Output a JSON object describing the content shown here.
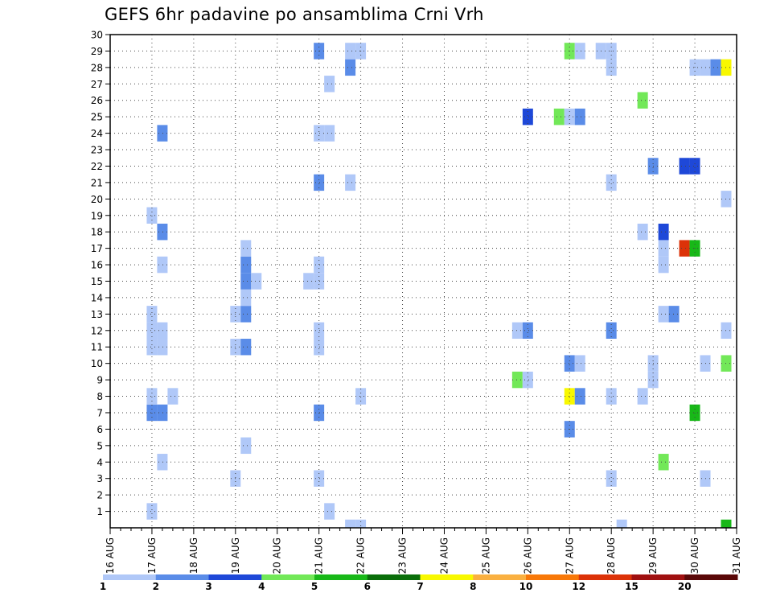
{
  "chart_data": {
    "type": "heatmap",
    "title": "GEFS 6hr padavine po ansamblima Crni Vrh",
    "xlabel": "",
    "ylabel": "",
    "x_tick_labels": [
      "16 AUG",
      "17 AUG",
      "18 AUG",
      "19 AUG",
      "20 AUG",
      "21 AUG",
      "22 AUG",
      "23 AUG",
      "24 AUG",
      "25 AUG",
      "26 AUG",
      "27 AUG",
      "28 AUG",
      "29 AUG",
      "30 AUG",
      "31 AUG"
    ],
    "y_tick_labels": [
      "1",
      "2",
      "3",
      "4",
      "5",
      "6",
      "7",
      "8",
      "9",
      "10",
      "11",
      "12",
      "13",
      "14",
      "15",
      "16",
      "17",
      "18",
      "19",
      "20",
      "21",
      "22",
      "23",
      "24",
      "25",
      "26",
      "27",
      "28",
      "29",
      "30"
    ],
    "x_range_days": [
      16,
      31
    ],
    "y_range": [
      0,
      30
    ],
    "time_step_hours": 6,
    "grid": true,
    "colorbar": {
      "placement": "bottom",
      "labels": [
        "1",
        "2",
        "3",
        "4",
        "5",
        "6",
        "7",
        "8",
        "10",
        "12",
        "15",
        "20"
      ],
      "colors": [
        "#b0c8f8",
        "#5a8ce8",
        "#1e48d8",
        "#72e858",
        "#18b818",
        "#0a6e0a",
        "#f8f800",
        "#fab040",
        "#f87808",
        "#dc3208",
        "#a01010",
        "#5a0808"
      ]
    },
    "cells": [
      {
        "t": 17.0,
        "m": 1,
        "l": 1
      },
      {
        "t": 17.25,
        "m": 4,
        "l": 1
      },
      {
        "t": 17.0,
        "m": 7,
        "l": 2
      },
      {
        "t": 17.25,
        "m": 7,
        "l": 2
      },
      {
        "t": 17.0,
        "m": 8,
        "l": 1
      },
      {
        "t": 17.5,
        "m": 8,
        "l": 1
      },
      {
        "t": 17.0,
        "m": 11,
        "l": 1
      },
      {
        "t": 17.25,
        "m": 11,
        "l": 1
      },
      {
        "t": 17.0,
        "m": 12,
        "l": 1
      },
      {
        "t": 17.25,
        "m": 12,
        "l": 1
      },
      {
        "t": 17.0,
        "m": 13,
        "l": 1
      },
      {
        "t": 17.25,
        "m": 16,
        "l": 1
      },
      {
        "t": 17.25,
        "m": 18,
        "l": 2
      },
      {
        "t": 17.0,
        "m": 19,
        "l": 1
      },
      {
        "t": 17.25,
        "m": 24,
        "l": 2
      },
      {
        "t": 19.0,
        "m": 3,
        "l": 1
      },
      {
        "t": 19.25,
        "m": 5,
        "l": 1
      },
      {
        "t": 19.0,
        "m": 11,
        "l": 1
      },
      {
        "t": 19.25,
        "m": 11,
        "l": 2
      },
      {
        "t": 19.0,
        "m": 13,
        "l": 1
      },
      {
        "t": 19.25,
        "m": 13,
        "l": 2
      },
      {
        "t": 19.25,
        "m": 14,
        "l": 1
      },
      {
        "t": 19.25,
        "m": 15,
        "l": 2
      },
      {
        "t": 19.25,
        "m": 16,
        "l": 2
      },
      {
        "t": 19.5,
        "m": 15,
        "l": 1
      },
      {
        "t": 19.25,
        "m": 17,
        "l": 1
      },
      {
        "t": 20.75,
        "m": 15,
        "l": 1
      },
      {
        "t": 21.0,
        "m": 3,
        "l": 1
      },
      {
        "t": 21.0,
        "m": 7,
        "l": 2
      },
      {
        "t": 21.0,
        "m": 11,
        "l": 1
      },
      {
        "t": 21.0,
        "m": 12,
        "l": 1
      },
      {
        "t": 21.0,
        "m": 15,
        "l": 1
      },
      {
        "t": 21.0,
        "m": 16,
        "l": 1
      },
      {
        "t": 21.0,
        "m": 21,
        "l": 2
      },
      {
        "t": 21.0,
        "m": 24,
        "l": 1
      },
      {
        "t": 21.25,
        "m": 24,
        "l": 1
      },
      {
        "t": 21.0,
        "m": 29,
        "l": 2
      },
      {
        "t": 21.25,
        "m": 1,
        "l": 1
      },
      {
        "t": 21.25,
        "m": 27,
        "l": 1
      },
      {
        "t": 21.75,
        "m": 0,
        "l": 1
      },
      {
        "t": 22.0,
        "m": 0,
        "l": 1
      },
      {
        "t": 21.75,
        "m": 21,
        "l": 1
      },
      {
        "t": 21.75,
        "m": 28,
        "l": 2
      },
      {
        "t": 21.75,
        "m": 29,
        "l": 1
      },
      {
        "t": 22.0,
        "m": 29,
        "l": 1
      },
      {
        "t": 22.0,
        "m": 8,
        "l": 1
      },
      {
        "t": 25.75,
        "m": 12,
        "l": 1
      },
      {
        "t": 25.75,
        "m": 9,
        "l": 4
      },
      {
        "t": 26.0,
        "m": 9,
        "l": 1
      },
      {
        "t": 26.0,
        "m": 12,
        "l": 2
      },
      {
        "t": 26.0,
        "m": 25,
        "l": 3
      },
      {
        "t": 26.75,
        "m": 25,
        "l": 4
      },
      {
        "t": 27.0,
        "m": 6,
        "l": 2
      },
      {
        "t": 27.0,
        "m": 8,
        "l": 7
      },
      {
        "t": 27.0,
        "m": 10,
        "l": 2
      },
      {
        "t": 27.0,
        "m": 25,
        "l": 1
      },
      {
        "t": 27.0,
        "m": 29,
        "l": 4
      },
      {
        "t": 27.25,
        "m": 8,
        "l": 2
      },
      {
        "t": 27.25,
        "m": 10,
        "l": 1
      },
      {
        "t": 27.25,
        "m": 25,
        "l": 2
      },
      {
        "t": 27.25,
        "m": 29,
        "l": 1
      },
      {
        "t": 27.75,
        "m": 29,
        "l": 1
      },
      {
        "t": 28.0,
        "m": 29,
        "l": 1
      },
      {
        "t": 28.0,
        "m": 28,
        "l": 1
      },
      {
        "t": 28.0,
        "m": 21,
        "l": 1
      },
      {
        "t": 28.0,
        "m": 12,
        "l": 2
      },
      {
        "t": 28.0,
        "m": 8,
        "l": 1
      },
      {
        "t": 28.0,
        "m": 3,
        "l": 1
      },
      {
        "t": 28.25,
        "m": 0,
        "l": 1
      },
      {
        "t": 28.75,
        "m": 8,
        "l": 1
      },
      {
        "t": 28.75,
        "m": 18,
        "l": 1
      },
      {
        "t": 28.75,
        "m": 26,
        "l": 4
      },
      {
        "t": 29.0,
        "m": 9,
        "l": 1
      },
      {
        "t": 29.0,
        "m": 10,
        "l": 1
      },
      {
        "t": 29.0,
        "m": 22,
        "l": 2
      },
      {
        "t": 29.25,
        "m": 4,
        "l": 4
      },
      {
        "t": 29.25,
        "m": 13,
        "l": 1
      },
      {
        "t": 29.5,
        "m": 13,
        "l": 2
      },
      {
        "t": 29.25,
        "m": 16,
        "l": 1
      },
      {
        "t": 29.25,
        "m": 17,
        "l": 1
      },
      {
        "t": 29.25,
        "m": 18,
        "l": 3
      },
      {
        "t": 29.75,
        "m": 17,
        "l": 10
      },
      {
        "t": 29.75,
        "m": 22,
        "l": 3
      },
      {
        "t": 30.0,
        "m": 22,
        "l": 3
      },
      {
        "t": 30.0,
        "m": 17,
        "l": 5
      },
      {
        "t": 30.0,
        "m": 7,
        "l": 5
      },
      {
        "t": 30.0,
        "m": 28,
        "l": 1
      },
      {
        "t": 30.25,
        "m": 28,
        "l": 1
      },
      {
        "t": 30.25,
        "m": 10,
        "l": 1
      },
      {
        "t": 30.25,
        "m": 3,
        "l": 1
      },
      {
        "t": 30.5,
        "m": 28,
        "l": 2
      },
      {
        "t": 30.75,
        "m": 28,
        "l": 7
      },
      {
        "t": 30.75,
        "m": 20,
        "l": 1
      },
      {
        "t": 30.75,
        "m": 10,
        "l": 4
      },
      {
        "t": 30.75,
        "m": 12,
        "l": 1
      },
      {
        "t": 30.75,
        "m": 0,
        "l": 5
      }
    ]
  }
}
